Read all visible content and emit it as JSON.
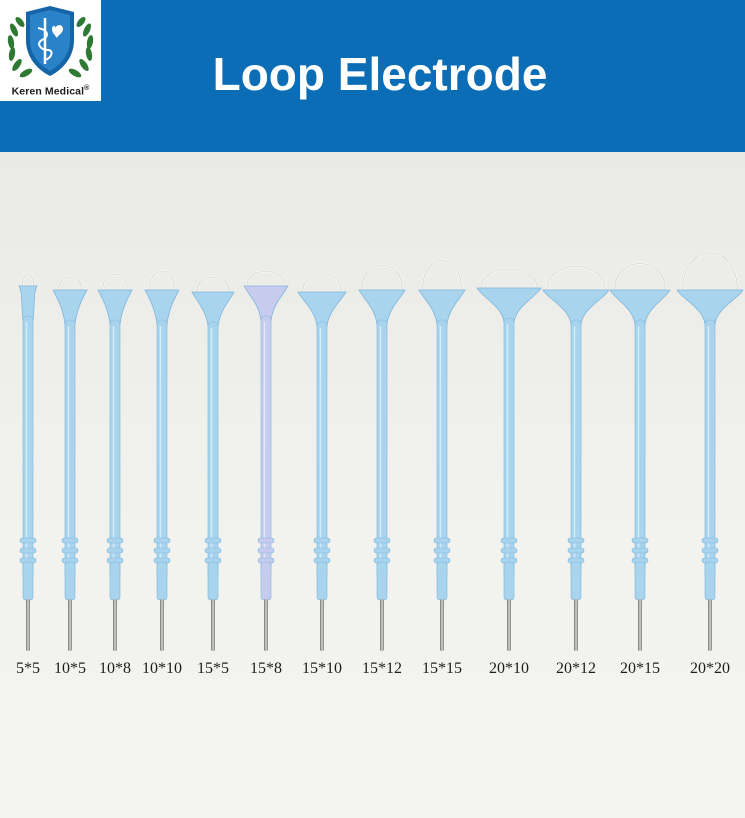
{
  "header": {
    "title": "Loop Electrode",
    "brand": "Keren Medical",
    "registered_mark": "®",
    "background_color": "#0a6db5"
  },
  "product": {
    "sizes": [
      "5*5",
      "10*5",
      "10*8",
      "10*10",
      "15*5",
      "15*8",
      "15*10",
      "15*12",
      "15*15",
      "20*10",
      "20*12",
      "20*15",
      "20*20"
    ]
  },
  "colors": {
    "electrode_body": "#a8d4ee",
    "electrode_edge": "#7fb6db",
    "electrode_violet": "#c7ccef",
    "loop_wire": "#f6f6f4",
    "pin_metal": "#9a9a96"
  }
}
